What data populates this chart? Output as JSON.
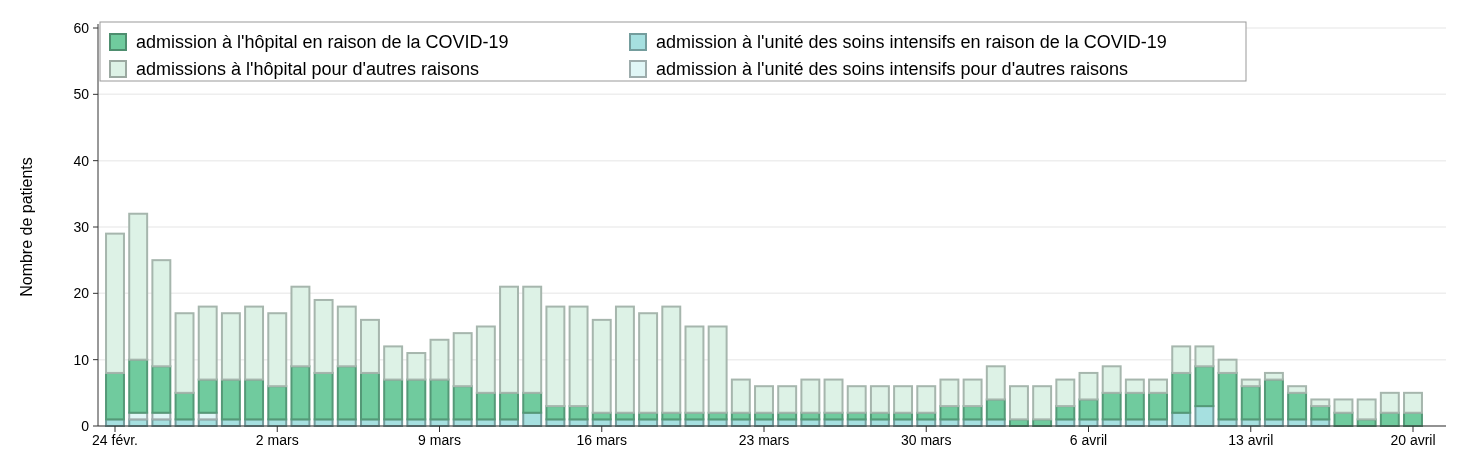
{
  "chart_data": {
    "type": "bar",
    "stacked": true,
    "ylabel": "Nombre de patients",
    "ylim": [
      0,
      60
    ],
    "yticks": [
      0,
      10,
      20,
      30,
      40,
      50,
      60
    ],
    "grid": "y",
    "legend": "top left",
    "categories": [
      "24 févr.",
      null,
      null,
      null,
      null,
      null,
      null,
      "2 mars",
      null,
      null,
      null,
      null,
      null,
      null,
      "9 mars",
      null,
      null,
      null,
      null,
      null,
      null,
      "16 mars",
      null,
      null,
      null,
      null,
      null,
      null,
      "23 mars",
      null,
      null,
      null,
      null,
      null,
      null,
      "30 mars",
      null,
      null,
      null,
      null,
      null,
      null,
      "6 avril",
      null,
      null,
      null,
      null,
      null,
      null,
      "13 avril",
      null,
      null,
      null,
      null,
      null,
      null,
      "20 avril"
    ],
    "series": [
      {
        "name": "admission à l'unité des soins intensifs en raison de la COVID-19",
        "color": "#a6e0e0",
        "values": [
          1,
          1,
          1,
          1,
          1,
          1,
          1,
          1,
          1,
          1,
          1,
          1,
          1,
          1,
          1,
          1,
          1,
          1,
          2,
          1,
          1,
          1,
          1,
          1,
          1,
          1,
          1,
          1,
          1,
          1,
          1,
          1,
          1,
          1,
          1,
          1,
          1,
          1,
          1,
          0,
          0,
          1,
          1,
          1,
          1,
          1,
          2,
          3,
          1,
          1,
          1,
          1,
          1,
          0,
          0,
          0,
          0
        ]
      },
      {
        "name": "admission à l'unité des soins intensifs pour d'autres raisons",
        "color": "#e0f6f6",
        "values": [
          0,
          1,
          1,
          0,
          1,
          0,
          0,
          0,
          0,
          0,
          0,
          0,
          0,
          0,
          0,
          0,
          0,
          0,
          0,
          0,
          0,
          0,
          0,
          0,
          0,
          0,
          0,
          0,
          0,
          0,
          0,
          0,
          0,
          0,
          0,
          0,
          0,
          0,
          0,
          0,
          0,
          0,
          0,
          0,
          0,
          0,
          0,
          0,
          0,
          0,
          0,
          0,
          0,
          0,
          0,
          0,
          0
        ]
      },
      {
        "name": "admission à l'hôpital en raison de la COVID-19",
        "color": "#70cb9e",
        "values": [
          7,
          8,
          7,
          4,
          5,
          6,
          6,
          5,
          8,
          7,
          8,
          7,
          6,
          6,
          6,
          5,
          4,
          4,
          3,
          2,
          2,
          1,
          1,
          1,
          1,
          1,
          1,
          1,
          1,
          1,
          1,
          1,
          1,
          1,
          1,
          1,
          2,
          2,
          3,
          1,
          1,
          2,
          3,
          4,
          4,
          4,
          6,
          6,
          7,
          5,
          6,
          4,
          2,
          2,
          1,
          2,
          2
        ]
      },
      {
        "name": "admissions à l'hôpital pour d'autres raisons",
        "color": "#ddf2e6",
        "values": [
          21,
          22,
          16,
          12,
          11,
          10,
          11,
          11,
          12,
          11,
          9,
          8,
          5,
          4,
          6,
          8,
          10,
          16,
          16,
          15,
          15,
          14,
          16,
          15,
          16,
          13,
          13,
          5,
          4,
          4,
          5,
          5,
          4,
          4,
          4,
          4,
          4,
          4,
          5,
          5,
          5,
          4,
          4,
          4,
          2,
          2,
          4,
          3,
          2,
          1,
          1,
          1,
          1,
          2,
          3,
          3,
          3
        ]
      }
    ]
  }
}
